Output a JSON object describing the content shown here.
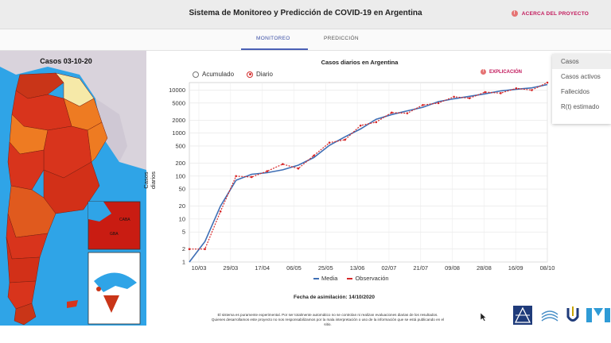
{
  "header": {
    "title": "Sistema de Monitoreo y Predicción de COVID-19 en Argentina",
    "about_label": "ACERCA DEL PROYECTO"
  },
  "tabs": [
    {
      "label": "MONITOREO",
      "active": true
    },
    {
      "label": "PREDICCIÓN",
      "active": false
    }
  ],
  "map": {
    "title": "Casos 03-10-20",
    "inset_label_a": "CABA",
    "inset_label_b": "GBA"
  },
  "chart_controls": {
    "radio_options": [
      {
        "label": "Acumulado",
        "selected": false
      },
      {
        "label": "Diario",
        "selected": true
      }
    ],
    "explain_label": "EXPLICACIÓN"
  },
  "dropdown": {
    "items": [
      {
        "label": "Casos",
        "selected": true
      },
      {
        "label": "Casos activos",
        "selected": false
      },
      {
        "label": "Fallecidos",
        "selected": false
      },
      {
        "label": "R(t) estimado",
        "selected": false
      }
    ]
  },
  "chart_data": {
    "type": "line",
    "title": "Casos diarios en Argentina",
    "ylabel": "Casos diarios",
    "xlabel": "",
    "y_scale": "log",
    "ylim": [
      1,
      15000
    ],
    "y_ticks": [
      1,
      2,
      5,
      10,
      20,
      50,
      100,
      200,
      500,
      1000,
      2000,
      5000,
      10000
    ],
    "x_ticks": [
      "10/03",
      "29/03",
      "17/04",
      "06/05",
      "25/05",
      "13/06",
      "02/07",
      "21/07",
      "09/08",
      "28/08",
      "16/09",
      "08/10"
    ],
    "x": [
      "05/03",
      "10/03",
      "20/03",
      "29/03",
      "08/04",
      "17/04",
      "27/04",
      "06/05",
      "16/05",
      "25/05",
      "04/06",
      "13/06",
      "23/06",
      "02/07",
      "12/07",
      "21/07",
      "31/07",
      "09/08",
      "19/08",
      "28/08",
      "07/09",
      "16/09",
      "26/09",
      "08/10"
    ],
    "series": [
      {
        "name": "Media",
        "color": "#3f6fb5",
        "values": [
          1,
          3,
          20,
          80,
          110,
          120,
          140,
          180,
          270,
          520,
          820,
          1250,
          2100,
          2700,
          3300,
          4000,
          5400,
          6300,
          7200,
          8200,
          9600,
          10500,
          11300,
          13500
        ]
      },
      {
        "name": "Observación",
        "color": "#d62728",
        "values": [
          2,
          2,
          15,
          100,
          95,
          130,
          190,
          150,
          300,
          600,
          700,
          1500,
          1800,
          3000,
          2900,
          4500,
          5000,
          7000,
          6500,
          9000,
          8500,
          11000,
          10000,
          15000
        ]
      }
    ],
    "legend_position": "bottom",
    "grid": true
  },
  "footer": {
    "simulation_date": "Fecha de asimilación: 14/10/2020",
    "disclaimer_line1": "El sistema es puramente experimental. Por ser totalmente automático no se controlan ni realizan evaluaciones diarias de los resultados.",
    "disclaimer_line2": "Quienes desarrollamos este proyecto no nos responsabilizamos por la mala interpretación o uso de la información que se está publicando en el",
    "disclaimer_line3": "sitio."
  },
  "colors": {
    "accent": "#3a4ea5",
    "about": "#c2185b",
    "map_sea": "#2fa4e7",
    "map_high": "#d8341c",
    "map_mid": "#ee7b22",
    "map_low": "#f6e9a8"
  }
}
